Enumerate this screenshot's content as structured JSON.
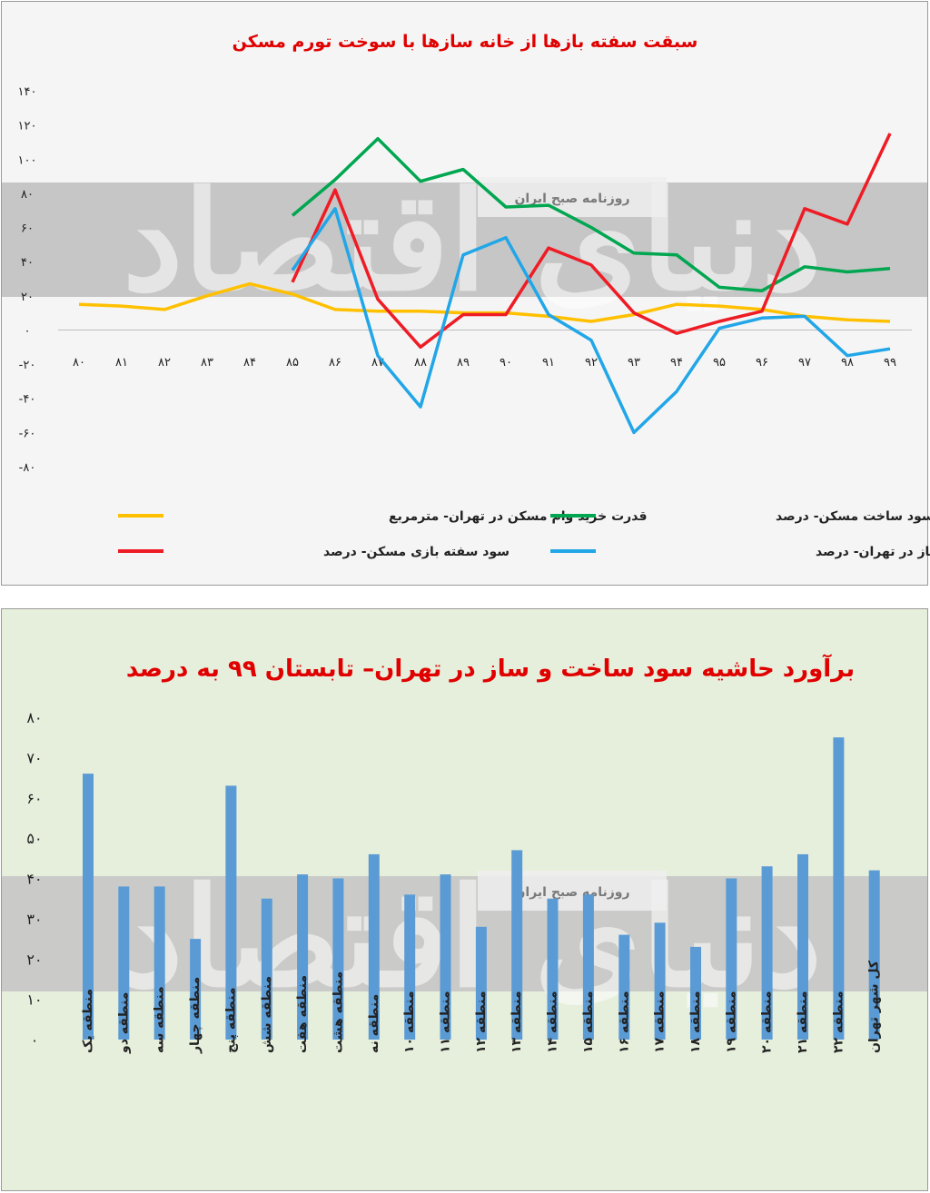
{
  "chart_data": [
    {
      "type": "line",
      "title": "سبقت سفته بازها از خانه سازها با سوخت تورم مسکن",
      "categories": [
        "۸۰",
        "۸۱",
        "۸۲",
        "۸۳",
        "۸۴",
        "۸۵",
        "۸۶",
        "۸۷",
        "۸۸",
        "۸۹",
        "۹۰",
        "۹۱",
        "۹۲",
        "۹۳",
        "۹۴",
        "۹۵",
        "۹۶",
        "۹۷",
        "۹۸",
        "۹۹"
      ],
      "y_ticks": [
        "۱۴۰",
        "۱۲۰",
        "۱۰۰",
        "۸۰",
        "۶۰",
        "۴۰",
        "۲۰",
        "۰",
        "-۲۰",
        "-۴۰",
        "-۶۰",
        "-۸۰"
      ],
      "ylim": [
        -80,
        140
      ],
      "series": [
        {
          "name": "قدرت خرید وام مسکن در تهران- مترمربع",
          "color": "#ffc000",
          "values": [
            15,
            14,
            12,
            20,
            27,
            21,
            12,
            11,
            11,
            10,
            10,
            8,
            5,
            9,
            15,
            14,
            12,
            8,
            6,
            5
          ]
        },
        {
          "name": "حاشیه سود ساخت مسکن- درصد",
          "color": "#00a650",
          "values": [
            null,
            null,
            null,
            null,
            null,
            67,
            88,
            112,
            87,
            94,
            72,
            73,
            60,
            45,
            44,
            25,
            23,
            37,
            34,
            36
          ]
        },
        {
          "name": "سود سفته بازی مسکن- درصد",
          "color": "#ee1c25",
          "values": [
            null,
            null,
            null,
            null,
            null,
            28,
            82,
            18,
            -10,
            9,
            9,
            48,
            38,
            10,
            -2,
            5,
            11,
            71,
            62,
            115
          ]
        },
        {
          "name": "نرخ رشد ساخت و ساز در تهران- درصد",
          "color": "#21a6e8",
          "values": [
            null,
            null,
            null,
            null,
            null,
            35,
            71,
            -15,
            -45,
            44,
            54,
            9,
            -6,
            -60,
            -36,
            1,
            7,
            8,
            -15,
            -11
          ]
        }
      ]
    },
    {
      "type": "bar",
      "title": "برآورد حاشیه سود ساخت و ساز در تهران– تابستان ۹۹ به درصد",
      "categories": [
        "منطقه یک",
        "منطقه دو",
        "منطقه سه",
        "منطقه چهار",
        "منطقه پنج",
        "منطقه شش",
        "منطقه هفت",
        "منطقه هشت",
        "منطقه نه",
        "منطقه ۱۰",
        "منطقه ۱۱",
        "منطقه ۱۲",
        "منطقه ۱۳",
        "منطقه ۱۴",
        "منطقه ۱۵",
        "منطقه ۱۶",
        "منطقه ۱۷",
        "منطقه ۱۸",
        "منطقه ۱۹",
        "منطقه ۲۰",
        "منطقه ۲۱",
        "منطقه ۲۲",
        "کل شهر تهران"
      ],
      "values": [
        66,
        38,
        38,
        25,
        63,
        35,
        41,
        40,
        46,
        36,
        41,
        28,
        47,
        35,
        36,
        26,
        29,
        23,
        40,
        43,
        46,
        75,
        42
      ],
      "y_ticks": [
        "۸۰",
        "۷۰",
        "۶۰",
        "۵۰",
        "۴۰",
        "۳۰",
        "۲۰",
        "۱۰",
        "۰"
      ],
      "ylim": [
        0,
        80
      ],
      "color": "#5b9bd5"
    }
  ],
  "watermark": {
    "brand": "دنیای اقتصاد",
    "tagline": "روزنامه صبح ایران"
  }
}
